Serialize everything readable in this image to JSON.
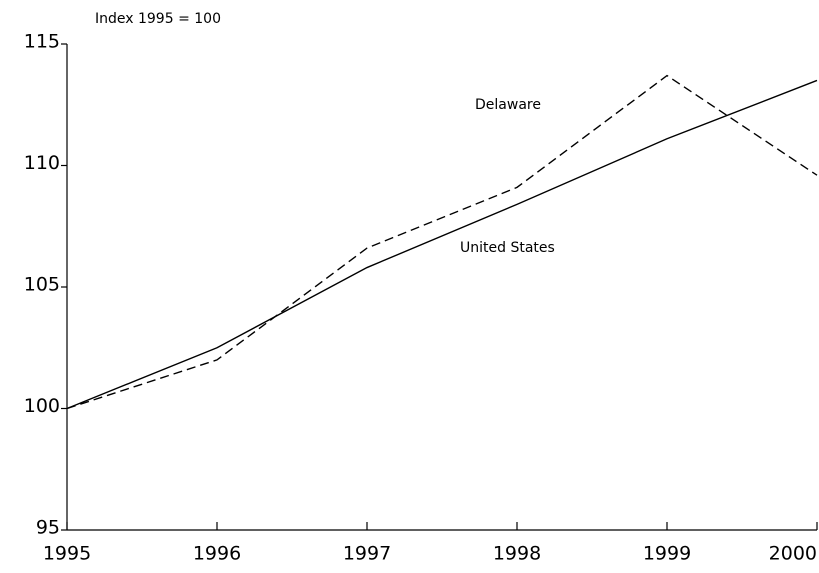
{
  "chart_data": {
    "type": "line",
    "subtitle": "Index 1995 = 100",
    "categories": [
      "1995",
      "1996",
      "1997",
      "1998",
      "1999",
      "2000"
    ],
    "series": [
      {
        "name": "United States",
        "color": "#000000",
        "dash": false,
        "values": [
          100,
          102.5,
          105.8,
          108.4,
          111.1,
          113.5
        ]
      },
      {
        "name": "Delaware",
        "color": "#000000",
        "dash": true,
        "values": [
          100,
          102.0,
          106.6,
          109.1,
          113.7,
          109.6
        ]
      }
    ],
    "ylim": [
      95,
      115
    ],
    "yticks": [
      95,
      100,
      105,
      110,
      115
    ],
    "grid": false
  }
}
